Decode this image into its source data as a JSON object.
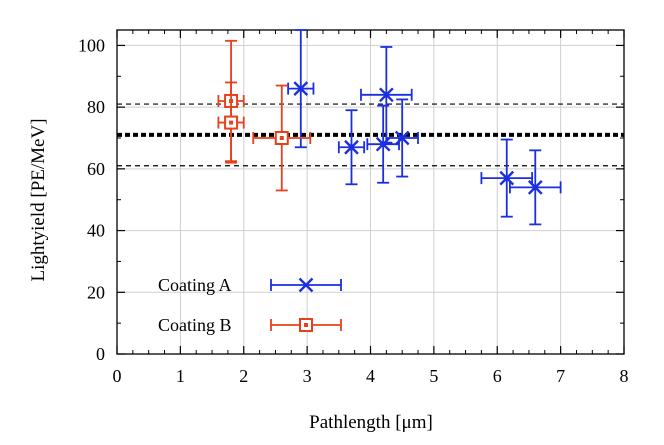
{
  "chart_data": {
    "type": "scatter",
    "title": "",
    "xlabel": "Pathlength [μm]",
    "ylabel": "Lightyield [PE/MeV]",
    "xlim": [
      0,
      8
    ],
    "ylim": [
      0,
      105
    ],
    "xticks": [
      "0",
      "1",
      "2",
      "3",
      "4",
      "5",
      "6",
      "7",
      "8"
    ],
    "yticks": [
      "0",
      "20",
      "40",
      "60",
      "80",
      "100"
    ],
    "grid": true,
    "legend_position": "bottom-left",
    "reference_lines": {
      "mean": 71,
      "upper": 81,
      "lower": 61
    },
    "series": [
      {
        "name": "Coating A",
        "marker": "x",
        "color": "#1a2fe0",
        "points": [
          {
            "x": 2.9,
            "y": 86,
            "xerr": 0.2,
            "yerr": 19
          },
          {
            "x": 3.7,
            "y": 67,
            "xerr": 0.2,
            "yerr": 12
          },
          {
            "x": 4.25,
            "y": 84,
            "xerr": 0.4,
            "yerr": 15.5
          },
          {
            "x": 4.2,
            "y": 68,
            "xerr": 0.25,
            "yerr": 12.5
          },
          {
            "x": 4.5,
            "y": 70,
            "xerr": 0.25,
            "yerr": 12.5
          },
          {
            "x": 6.15,
            "y": 57,
            "xerr": 0.4,
            "yerr": 12.5
          },
          {
            "x": 6.6,
            "y": 54,
            "xerr": 0.4,
            "yerr": 12
          }
        ]
      },
      {
        "name": "Coating B",
        "marker": "square",
        "color": "#e8401c",
        "points": [
          {
            "x": 1.8,
            "y": 82,
            "xerr": 0.2,
            "yerr": 19.5
          },
          {
            "x": 1.8,
            "y": 75,
            "xerr": 0.2,
            "yerr": 13
          },
          {
            "x": 2.6,
            "y": 70,
            "xerr": 0.45,
            "yerr": 17
          }
        ]
      }
    ]
  }
}
